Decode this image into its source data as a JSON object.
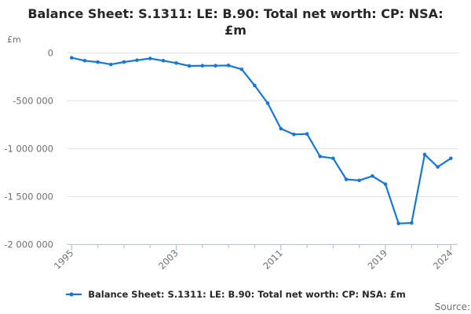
{
  "window": {
    "title_line1": "Balance Sheet: S.1311: LE: B.90: Total net worth: CP: NSA:",
    "title_line2": "£m"
  },
  "axes": {
    "unit_label": "£m"
  },
  "legend": {
    "label": "Balance Sheet: S.1311: LE: B.90: Total net worth: CP: NSA: £m"
  },
  "footer": {
    "source_label": "Source:"
  },
  "colors": {
    "line": "#1976d2",
    "axis": "#b9c8e2",
    "grid": "#e3e3e3",
    "tick_text": "#6f6f6f",
    "title_text": "#262626"
  },
  "chart_data": {
    "type": "line",
    "title": "Balance Sheet: S.1311: LE: B.90: Total net worth: CP: NSA: £m",
    "xlabel": "",
    "ylabel": "£m",
    "x": [
      1995,
      1996,
      1997,
      1998,
      1999,
      2000,
      2001,
      2002,
      2003,
      2004,
      2005,
      2006,
      2007,
      2008,
      2009,
      2010,
      2011,
      2012,
      2013,
      2014,
      2015,
      2016,
      2017,
      2018,
      2019,
      2020,
      2021,
      2022,
      2023,
      2024
    ],
    "series": [
      {
        "name": "Balance Sheet: S.1311: LE: B.90: Total net worth: CP: NSA: £m",
        "values": [
          -50000,
          -80000,
          -95000,
          -120000,
          -94000,
          -75000,
          -57000,
          -80000,
          -105000,
          -135000,
          -133000,
          -133000,
          -130000,
          -170000,
          -340000,
          -525000,
          -790000,
          -850000,
          -845000,
          -1080000,
          -1100000,
          -1320000,
          -1330000,
          -1285000,
          -1370000,
          -1780000,
          -1775000,
          -1060000,
          -1190000,
          -1100000
        ]
      }
    ],
    "ylim": [
      -2000000,
      0
    ],
    "xlim": [
      1995,
      2024
    ],
    "y_ticks": [
      0,
      -500000,
      -1000000,
      -1500000,
      -2000000
    ],
    "y_tick_labels": [
      "0",
      "-500 000",
      "-1 000 000",
      "-1 500 000",
      "-2 000 000"
    ],
    "x_ticks_labeled": [
      1995,
      2003,
      2011,
      2019,
      2024
    ],
    "x_ticks_all": [
      1995,
      1997,
      1999,
      2001,
      2003,
      2005,
      2007,
      2009,
      2011,
      2013,
      2015,
      2017,
      2019,
      2021,
      2023,
      2024
    ],
    "grid": true,
    "legend_position": "bottom",
    "marker": "circle"
  }
}
